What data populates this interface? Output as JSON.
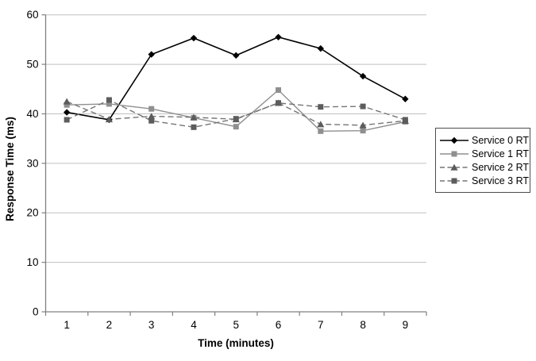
{
  "chart_data": {
    "type": "line",
    "title": "",
    "xlabel": "Time (minutes)",
    "ylabel": "Response Time (ms)",
    "x": [
      1,
      2,
      3,
      4,
      5,
      6,
      7,
      8,
      9
    ],
    "ylim": [
      0,
      60
    ],
    "yticks": [
      0,
      10,
      20,
      30,
      40,
      50,
      60
    ],
    "grid": true,
    "legend_position": "right",
    "series": [
      {
        "name": "Service 0 RT",
        "marker": "diamond",
        "line_style": "solid",
        "line_color": "#000000",
        "marker_color": "#000000",
        "values": [
          40.3,
          38.8,
          52.0,
          55.3,
          51.8,
          55.5,
          53.2,
          47.6,
          43.0
        ]
      },
      {
        "name": "Service 1 RT",
        "marker": "square",
        "line_style": "solid",
        "line_color": "#8f8f8f",
        "marker_color": "#8f8f8f",
        "values": [
          41.8,
          42.0,
          41.0,
          39.2,
          37.4,
          44.8,
          36.5,
          36.6,
          38.4
        ]
      },
      {
        "name": "Service 2 RT",
        "marker": "triangle",
        "line_style": "dashed",
        "line_color": "#757575",
        "marker_color": "#5c5c5c",
        "values": [
          42.5,
          38.9,
          39.5,
          39.3,
          38.9,
          42.2,
          37.9,
          37.7,
          38.6
        ]
      },
      {
        "name": "Service 3 RT",
        "marker": "square",
        "line_style": "dashed",
        "line_color": "#757575",
        "marker_color": "#5c5c5c",
        "values": [
          38.8,
          42.8,
          38.6,
          37.3,
          39.0,
          42.2,
          41.4,
          41.5,
          38.8
        ]
      }
    ],
    "colors": {
      "background": "#ffffff",
      "gridline": "#c0c0c0",
      "axis": "#808080",
      "text": "#000000"
    }
  }
}
